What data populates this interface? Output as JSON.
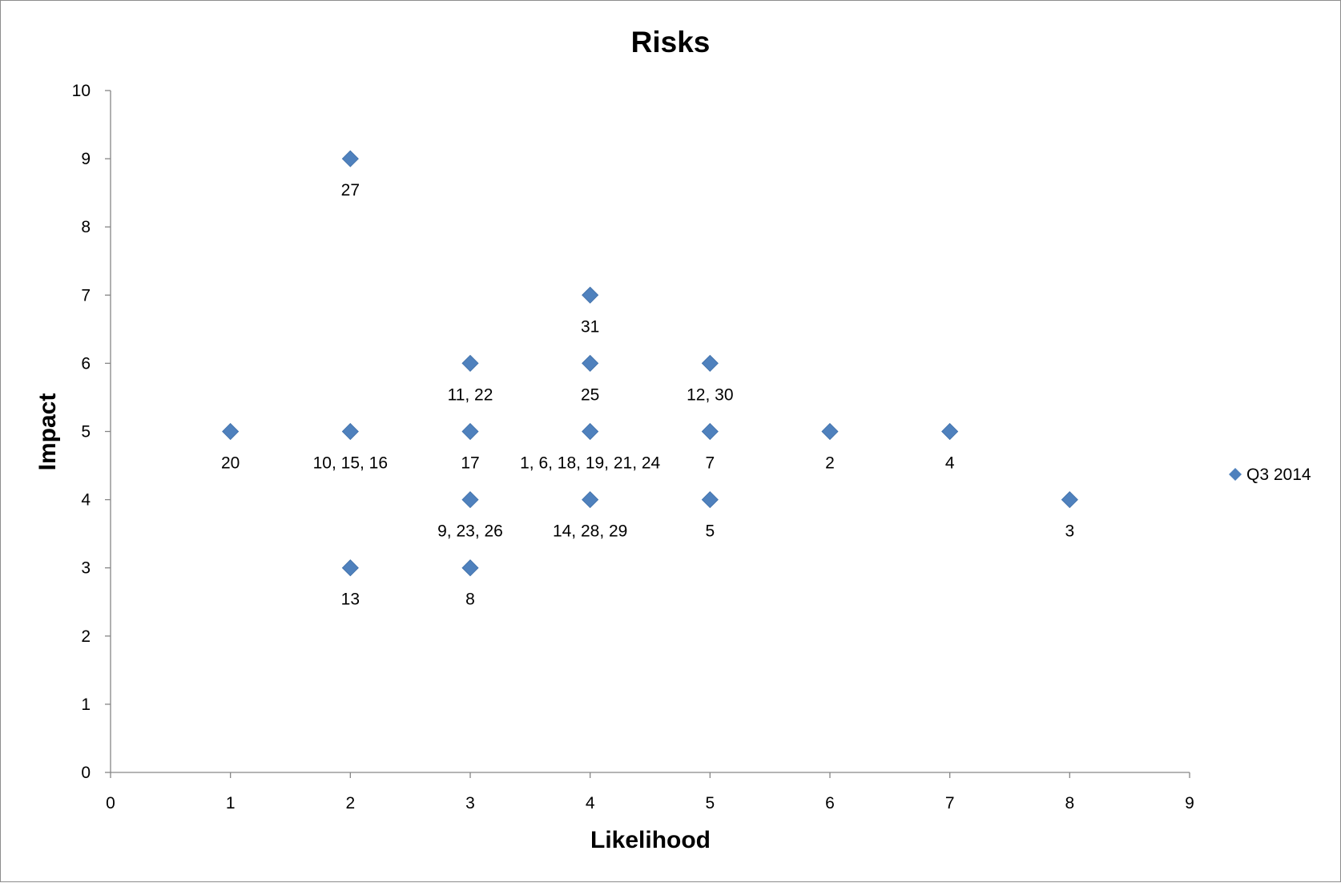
{
  "chart_data": {
    "type": "scatter",
    "title": "Risks",
    "xlabel": "Likelihood",
    "ylabel": "Impact",
    "xlim": [
      0,
      9
    ],
    "ylim": [
      0,
      10
    ],
    "xticks": [
      "0",
      "1",
      "2",
      "3",
      "4",
      "5",
      "6",
      "7",
      "8",
      "9"
    ],
    "yticks": [
      "0",
      "1",
      "2",
      "3",
      "4",
      "5",
      "6",
      "7",
      "8",
      "9",
      "10"
    ],
    "grid": false,
    "legend": "right",
    "series": [
      {
        "name": "Q3 2014",
        "color": "#4f81bd",
        "marker": "diamond",
        "points": [
          {
            "x": 2,
            "y": 9,
            "label": "27"
          },
          {
            "x": 4,
            "y": 7,
            "label": "31"
          },
          {
            "x": 3,
            "y": 6,
            "label": "11,  22"
          },
          {
            "x": 4,
            "y": 6,
            "label": "25"
          },
          {
            "x": 5,
            "y": 6,
            "label": "12, 30"
          },
          {
            "x": 1,
            "y": 5,
            "label": "20"
          },
          {
            "x": 2,
            "y": 5,
            "label": "10, 15, 16"
          },
          {
            "x": 3,
            "y": 5,
            "label": "17"
          },
          {
            "x": 4,
            "y": 5,
            "label": "1, 6, 18, 19, 21, 24"
          },
          {
            "x": 5,
            "y": 5,
            "label": "7"
          },
          {
            "x": 6,
            "y": 5,
            "label": "2"
          },
          {
            "x": 7,
            "y": 5,
            "label": "4"
          },
          {
            "x": 3,
            "y": 4,
            "label": "9, 23, 26"
          },
          {
            "x": 4,
            "y": 4,
            "label": "14, 28, 29"
          },
          {
            "x": 5,
            "y": 4,
            "label": "5"
          },
          {
            "x": 8,
            "y": 4,
            "label": "3"
          },
          {
            "x": 2,
            "y": 3,
            "label": "13"
          },
          {
            "x": 3,
            "y": 3,
            "label": "8"
          }
        ]
      }
    ]
  }
}
